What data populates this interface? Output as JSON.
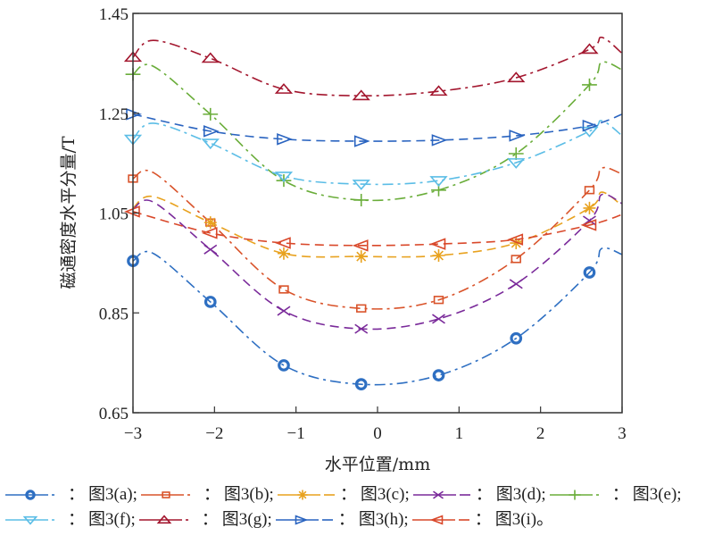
{
  "chart_data": {
    "type": "line",
    "title": "",
    "xlabel": "水平位置/mm",
    "ylabel": "磁通密度水平分量/T",
    "xlim": [
      -3,
      3
    ],
    "ylim": [
      0.65,
      1.45
    ],
    "xticks": [
      -3,
      -2,
      -1,
      0,
      1,
      2,
      3
    ],
    "xtick_labels": [
      "−3",
      "−2",
      "−1",
      "0",
      "1",
      "2",
      "3"
    ],
    "yticks": [
      0.65,
      0.85,
      1.05,
      1.25,
      1.45
    ],
    "ytick_labels": [
      "0.65",
      "0.85",
      "1.05",
      "1.25",
      "1.45"
    ],
    "grid": false,
    "legend_position": "bottom",
    "series": [
      {
        "name": "图3(a)",
        "color": "#2e6fc2",
        "marker": "circle",
        "dash": "dashdot",
        "x": [
          -3,
          -2.75,
          -2.05,
          -1.15,
          -0.2,
          0.75,
          1.7,
          2.6,
          2.75,
          3
        ],
        "y": [
          0.954,
          0.969,
          0.872,
          0.745,
          0.707,
          0.725,
          0.799,
          0.931,
          0.979,
          0.967
        ],
        "marker_x": [
          -3,
          -2.05,
          -1.15,
          -0.2,
          0.75,
          1.7,
          2.6
        ]
      },
      {
        "name": "图3(b)",
        "color": "#d9532a",
        "marker": "square",
        "dash": "dashdot",
        "x": [
          -3,
          -2.75,
          -2.05,
          -1.15,
          -0.2,
          0.75,
          1.7,
          2.6,
          2.75,
          3
        ],
        "y": [
          1.119,
          1.131,
          1.031,
          0.897,
          0.859,
          0.876,
          0.958,
          1.096,
          1.14,
          1.128
        ],
        "marker_x": [
          -3,
          -2.05,
          -1.15,
          -0.2,
          0.75,
          1.7,
          2.6
        ]
      },
      {
        "name": "图3(c)",
        "color": "#e8a21f",
        "marker": "asterisk",
        "dash": "dash",
        "x": [
          -3,
          -2.75,
          -2.05,
          -1.15,
          -0.2,
          0.75,
          1.7,
          2.6,
          2.75,
          3
        ],
        "y": [
          1.06,
          1.083,
          1.031,
          0.969,
          0.963,
          0.965,
          0.99,
          1.06,
          1.092,
          1.065
        ],
        "marker_x": [
          -2.05,
          -1.15,
          -0.2,
          0.75,
          1.7,
          2.6
        ]
      },
      {
        "name": "图3(d)",
        "color": "#7a2a9a",
        "marker": "x",
        "dash": "dash",
        "x": [
          -3,
          -2.75,
          -2.05,
          -1.15,
          -0.2,
          0.75,
          1.7,
          2.6,
          2.75,
          3
        ],
        "y": [
          1.058,
          1.072,
          0.977,
          0.854,
          0.818,
          0.838,
          0.908,
          1.035,
          1.087,
          1.069
        ],
        "marker_x": [
          -2.05,
          -1.15,
          -0.2,
          0.75,
          1.7,
          2.6
        ]
      },
      {
        "name": "图3(e)",
        "color": "#6aad3a",
        "marker": "plus",
        "dash": "dashdot",
        "x": [
          -3,
          -2.75,
          -2.05,
          -1.15,
          -0.2,
          0.75,
          1.7,
          2.6,
          2.75,
          3
        ],
        "y": [
          1.328,
          1.344,
          1.248,
          1.115,
          1.076,
          1.096,
          1.169,
          1.307,
          1.352,
          1.337
        ],
        "marker_x": [
          -3,
          -2.05,
          -1.15,
          -0.2,
          0.75,
          1.7,
          2.6
        ]
      },
      {
        "name": "图3(f)",
        "color": "#5bbde6",
        "marker": "triangle-down",
        "dash": "dashdot",
        "x": [
          -3,
          -2.75,
          -2.05,
          -1.15,
          -0.2,
          0.75,
          1.7,
          2.6,
          2.75,
          3
        ],
        "y": [
          1.198,
          1.23,
          1.19,
          1.124,
          1.108,
          1.115,
          1.151,
          1.214,
          1.235,
          1.205
        ],
        "marker_x": [
          -3,
          -2.05,
          -1.15,
          -0.2,
          0.75,
          1.7,
          2.6
        ]
      },
      {
        "name": "图3(g)",
        "color": "#a3162e",
        "marker": "triangle-up",
        "dash": "dashdot",
        "x": [
          -3,
          -2.75,
          -2.05,
          -1.15,
          -0.2,
          0.75,
          1.7,
          2.6,
          2.75,
          3
        ],
        "y": [
          1.362,
          1.396,
          1.36,
          1.298,
          1.285,
          1.294,
          1.321,
          1.378,
          1.402,
          1.37
        ],
        "marker_x": [
          -3,
          -2.05,
          -1.15,
          -0.2,
          0.75,
          1.7,
          2.6
        ]
      },
      {
        "name": "图3(h)",
        "color": "#2a64c0",
        "marker": "triangle-right",
        "dash": "dash",
        "x": [
          -3,
          -2.05,
          -1.15,
          -0.2,
          0.75,
          1.7,
          2.6,
          3
        ],
        "y": [
          1.248,
          1.214,
          1.198,
          1.194,
          1.196,
          1.205,
          1.225,
          1.248
        ],
        "marker_x": [
          -3,
          -2.05,
          -1.15,
          -0.2,
          0.75,
          1.7,
          2.6
        ]
      },
      {
        "name": "图3(i)",
        "color": "#d9482a",
        "marker": "triangle-left",
        "dash": "dash",
        "x": [
          -3,
          -2.05,
          -1.15,
          -0.2,
          0.75,
          1.7,
          2.6,
          3
        ],
        "y": [
          1.053,
          1.01,
          0.99,
          0.985,
          0.988,
          0.997,
          1.026,
          1.047
        ],
        "marker_x": [
          -3,
          -2.05,
          -1.15,
          -0.2,
          0.75,
          1.7,
          2.6
        ]
      }
    ]
  },
  "legend": {
    "separator": "：",
    "rows": [
      [
        {
          "series": 0,
          "label": "图3(a);"
        },
        {
          "series": 1,
          "label": "图3(b);"
        },
        {
          "series": 2,
          "label": "图3(c);"
        },
        {
          "series": 3,
          "label": "图3(d);"
        },
        {
          "series": 4,
          "label": "图3(e);"
        }
      ],
      [
        {
          "series": 5,
          "label": "图3(f);"
        },
        {
          "series": 6,
          "label": "图3(g);"
        },
        {
          "series": 7,
          "label": "图3(h);"
        },
        {
          "series": 8,
          "label": "图3(i)。"
        }
      ]
    ]
  }
}
